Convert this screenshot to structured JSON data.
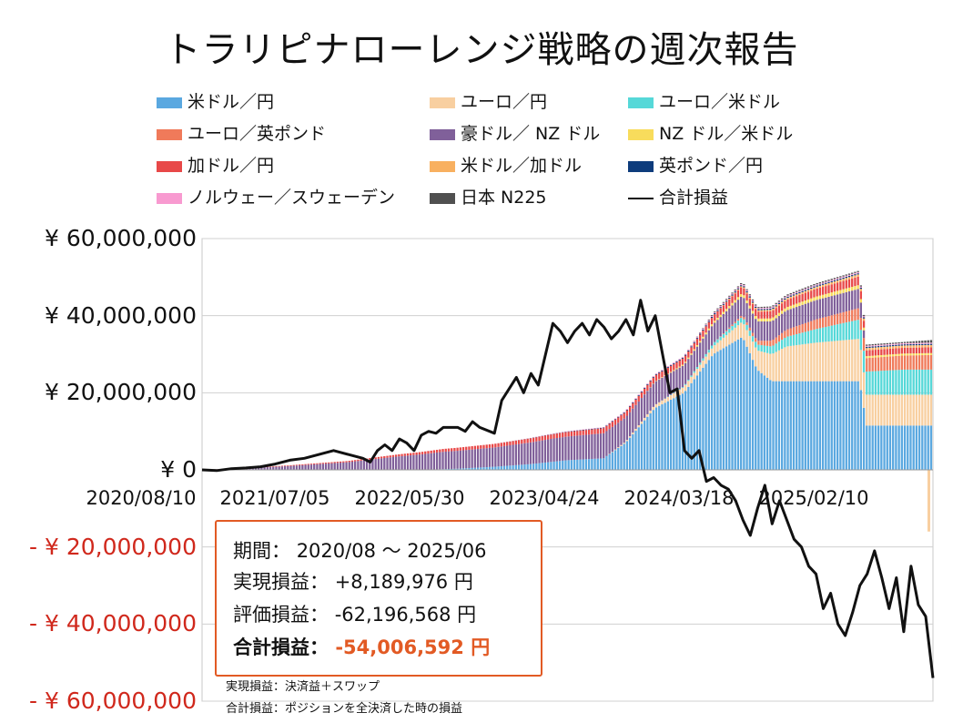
{
  "title": "トラリピナローレンジ戦略の週次報告",
  "legend": [
    {
      "label": "米ドル／円",
      "color": "#5aa8e0",
      "kind": "box"
    },
    {
      "label": "ユーロ／円",
      "color": "#f8cfa0",
      "kind": "box"
    },
    {
      "label": "ユーロ／米ドル",
      "color": "#56d8d8",
      "kind": "box"
    },
    {
      "label": "ユーロ／英ポンド",
      "color": "#f07a5a",
      "kind": "box"
    },
    {
      "label": "豪ドル／ NZ ドル",
      "color": "#80609a",
      "kind": "box"
    },
    {
      "label": "NZ ドル／米ドル",
      "color": "#f8dc5c",
      "kind": "box"
    },
    {
      "label": "加ドル／円",
      "color": "#e84848",
      "kind": "box"
    },
    {
      "label": "米ドル／加ドル",
      "color": "#f8b060",
      "kind": "box"
    },
    {
      "label": "英ポンド／円",
      "color": "#0e3c7c",
      "kind": "box"
    },
    {
      "label": "ノルウェー／スウェーデン",
      "color": "#f89ad0",
      "kind": "box"
    },
    {
      "label": "日本 N225",
      "color": "#505050",
      "kind": "box"
    },
    {
      "label": "合計損益",
      "color": "#111111",
      "kind": "line"
    }
  ],
  "yaxis": {
    "ticks": [
      60000000,
      40000000,
      20000000,
      0,
      -20000000,
      -40000000,
      -60000000
    ],
    "tick_labels": [
      "¥ 60,000,000",
      "¥ 40,000,000",
      "¥ 20,000,000",
      "¥ 0",
      "- ¥ 20,000,000",
      "- ¥ 40,000,000",
      "- ¥ 60,000,000"
    ],
    "negative_color": "#d0281c"
  },
  "xaxis": {
    "tick_labels": [
      "2020/08/10",
      "2021/07/05",
      "2022/05/30",
      "2023/04/24",
      "2024/03/18",
      "2025/02/10"
    ]
  },
  "chart_data": {
    "type": "bar",
    "x_range": [
      "2020/08/10",
      "2025/06"
    ],
    "ylim": [
      -60000000,
      60000000
    ],
    "grid": true,
    "legend_position": "top",
    "stack_series": [
      {
        "name": "米ドル／円",
        "color": "#5aa8e0",
        "points": [
          [
            0,
            0
          ],
          [
            30,
            0
          ],
          [
            35,
            300000
          ],
          [
            40,
            800000
          ],
          [
            45,
            1500000
          ],
          [
            50,
            2500000
          ],
          [
            55,
            3000000
          ],
          [
            58,
            7000000
          ],
          [
            62,
            16000000
          ],
          [
            66,
            20000000
          ],
          [
            70,
            30000000
          ],
          [
            74,
            34500000
          ],
          [
            76,
            26000000
          ],
          [
            78,
            23000000
          ],
          [
            84,
            23000000
          ],
          [
            90,
            23000000
          ],
          [
            91,
            11500000
          ],
          [
            100,
            11500000
          ]
        ]
      },
      {
        "name": "ユーロ／円",
        "color": "#f8cfa0",
        "points": [
          [
            0,
            0
          ],
          [
            55,
            0
          ],
          [
            58,
            300000
          ],
          [
            62,
            800000
          ],
          [
            66,
            1500000
          ],
          [
            70,
            2000000
          ],
          [
            76,
            5000000
          ],
          [
            80,
            9000000
          ],
          [
            84,
            10000000
          ],
          [
            90,
            11000000
          ],
          [
            91,
            8000000
          ],
          [
            96,
            8000000
          ],
          [
            100,
            8000000
          ]
        ]
      },
      {
        "name": "ユーロ／米ドル",
        "color": "#56d8d8",
        "points": [
          [
            0,
            0
          ],
          [
            62,
            0
          ],
          [
            66,
            200000
          ],
          [
            70,
            800000
          ],
          [
            76,
            1500000
          ],
          [
            82,
            3000000
          ],
          [
            86,
            4000000
          ],
          [
            90,
            5000000
          ],
          [
            91,
            6000000
          ],
          [
            96,
            6500000
          ],
          [
            100,
            6500000
          ]
        ]
      },
      {
        "name": "ユーロ／英ポンド",
        "color": "#f07a5a",
        "points": [
          [
            0,
            0
          ],
          [
            70,
            0
          ],
          [
            74,
            500000
          ],
          [
            78,
            1500000
          ],
          [
            84,
            2500000
          ],
          [
            90,
            3000000
          ],
          [
            91,
            3500000
          ],
          [
            100,
            3800000
          ]
        ]
      },
      {
        "name": "豪ドル／ NZ ドル",
        "color": "#80609a",
        "points": [
          [
            0,
            0
          ],
          [
            5,
            300000
          ],
          [
            12,
            1000000
          ],
          [
            20,
            2000000
          ],
          [
            27,
            3500000
          ],
          [
            33,
            4500000
          ],
          [
            40,
            5000000
          ],
          [
            48,
            6000000
          ],
          [
            55,
            6500000
          ],
          [
            62,
            6000000
          ],
          [
            70,
            5000000
          ],
          [
            76,
            5000000
          ],
          [
            84,
            5000000
          ],
          [
            90,
            5000000
          ],
          [
            91,
            0
          ],
          [
            100,
            0
          ]
        ]
      },
      {
        "name": "NZ ドル／米ドル",
        "color": "#f8dc5c",
        "points": [
          [
            0,
            0
          ],
          [
            60,
            0
          ],
          [
            66,
            300000
          ],
          [
            74,
            700000
          ],
          [
            84,
            900000
          ],
          [
            90,
            1000000
          ],
          [
            91,
            500000
          ],
          [
            100,
            500000
          ]
        ]
      },
      {
        "name": "加ドル／円",
        "color": "#e84848",
        "points": [
          [
            0,
            0
          ],
          [
            20,
            300000
          ],
          [
            35,
            800000
          ],
          [
            50,
            1200000
          ],
          [
            62,
            1500000
          ],
          [
            76,
            1800000
          ],
          [
            90,
            2200000
          ],
          [
            91,
            1500000
          ],
          [
            100,
            1500000
          ]
        ]
      },
      {
        "name": "米ドル／加ドル",
        "color": "#f8b060",
        "points": [
          [
            0,
            0
          ],
          [
            70,
            0
          ],
          [
            74,
            300000
          ],
          [
            84,
            500000
          ],
          [
            90,
            600000
          ],
          [
            100,
            600000
          ]
        ]
      },
      {
        "name": "英ポンド／円",
        "color": "#0e3c7c",
        "points": [
          [
            0,
            0
          ],
          [
            40,
            0
          ],
          [
            50,
            100000
          ],
          [
            62,
            200000
          ],
          [
            76,
            300000
          ],
          [
            100,
            300000
          ]
        ]
      },
      {
        "name": "ノルウェー／スウェーデン",
        "color": "#f89ad0",
        "points": [
          [
            0,
            0
          ],
          [
            40,
            0
          ],
          [
            50,
            100000
          ],
          [
            62,
            200000
          ],
          [
            76,
            300000
          ],
          [
            100,
            300000
          ]
        ]
      },
      {
        "name": "日本 N225",
        "color": "#505050",
        "points": [
          [
            0,
            0
          ],
          [
            66,
            0
          ],
          [
            70,
            200000
          ],
          [
            80,
            300000
          ],
          [
            90,
            300000
          ],
          [
            96,
            300000
          ],
          [
            100,
            700000
          ]
        ]
      }
    ],
    "total_line": {
      "name": "合計損益",
      "points": [
        [
          0,
          0
        ],
        [
          2,
          -200000
        ],
        [
          4,
          300000
        ],
        [
          6,
          500000
        ],
        [
          8,
          800000
        ],
        [
          10,
          1500000
        ],
        [
          12,
          2500000
        ],
        [
          14,
          3000000
        ],
        [
          16,
          4000000
        ],
        [
          18,
          5000000
        ],
        [
          20,
          4000000
        ],
        [
          22,
          3000000
        ],
        [
          23,
          2000000
        ],
        [
          24,
          5000000
        ],
        [
          25,
          6500000
        ],
        [
          26,
          5000000
        ],
        [
          27,
          8000000
        ],
        [
          28,
          7000000
        ],
        [
          29,
          5000000
        ],
        [
          30,
          9000000
        ],
        [
          31,
          10000000
        ],
        [
          32,
          9500000
        ],
        [
          33,
          11000000
        ],
        [
          35,
          11000000
        ],
        [
          36,
          10000000
        ],
        [
          37,
          12500000
        ],
        [
          38,
          11000000
        ],
        [
          40,
          9500000
        ],
        [
          41,
          18000000
        ],
        [
          42,
          21000000
        ],
        [
          43,
          24000000
        ],
        [
          44,
          20000000
        ],
        [
          45,
          25000000
        ],
        [
          46,
          22000000
        ],
        [
          47,
          30000000
        ],
        [
          48,
          38000000
        ],
        [
          49,
          36000000
        ],
        [
          50,
          33000000
        ],
        [
          51,
          36000000
        ],
        [
          52,
          38000000
        ],
        [
          53,
          35000000
        ],
        [
          54,
          39000000
        ],
        [
          55,
          37000000
        ],
        [
          56,
          34000000
        ],
        [
          57,
          36000000
        ],
        [
          58,
          39000000
        ],
        [
          59,
          35000000
        ],
        [
          60,
          44000000
        ],
        [
          61,
          36000000
        ],
        [
          62,
          40000000
        ],
        [
          63,
          30000000
        ],
        [
          64,
          20000000
        ],
        [
          65,
          21000000
        ],
        [
          66,
          5000000
        ],
        [
          67,
          3000000
        ],
        [
          68,
          5000000
        ],
        [
          69,
          -3000000
        ],
        [
          70,
          -2000000
        ],
        [
          71,
          -4000000
        ],
        [
          72,
          -5000000
        ],
        [
          73,
          -8000000
        ],
        [
          74,
          -13000000
        ],
        [
          75,
          -17000000
        ],
        [
          76,
          -10000000
        ],
        [
          77,
          -4000000
        ],
        [
          78,
          -14000000
        ],
        [
          79,
          -8000000
        ],
        [
          80,
          -13000000
        ],
        [
          81,
          -18000000
        ],
        [
          82,
          -20000000
        ],
        [
          83,
          -25000000
        ],
        [
          84,
          -27000000
        ],
        [
          85,
          -36000000
        ],
        [
          86,
          -32000000
        ],
        [
          87,
          -40000000
        ],
        [
          88,
          -43000000
        ],
        [
          89,
          -37000000
        ],
        [
          90,
          -30000000
        ],
        [
          91,
          -27000000
        ],
        [
          92,
          -21000000
        ],
        [
          93,
          -28000000
        ],
        [
          94,
          -36000000
        ],
        [
          95,
          -28000000
        ],
        [
          96,
          -42000000
        ],
        [
          97,
          -25000000
        ],
        [
          98,
          -35000000
        ],
        [
          99,
          -38000000
        ],
        [
          100,
          -54000000
        ]
      ]
    },
    "end_spike": {
      "name": "ユーロ／円",
      "value": -16000000
    }
  },
  "info": {
    "period_label": "期間：",
    "period_value": "2020/08 ～ 2025/06",
    "realized_label": "実現損益：",
    "realized_value": "+8,189,976 円",
    "unrealized_label": "評価損益：",
    "unrealized_value": "-62,196,568 円",
    "total_label": "合計損益：",
    "total_value": "-54,006,592 円"
  },
  "notes": {
    "realized_note": "実現損益：決済益＋スワップ",
    "total_note": "合計損益：ポジションを全決済した時の損益"
  }
}
